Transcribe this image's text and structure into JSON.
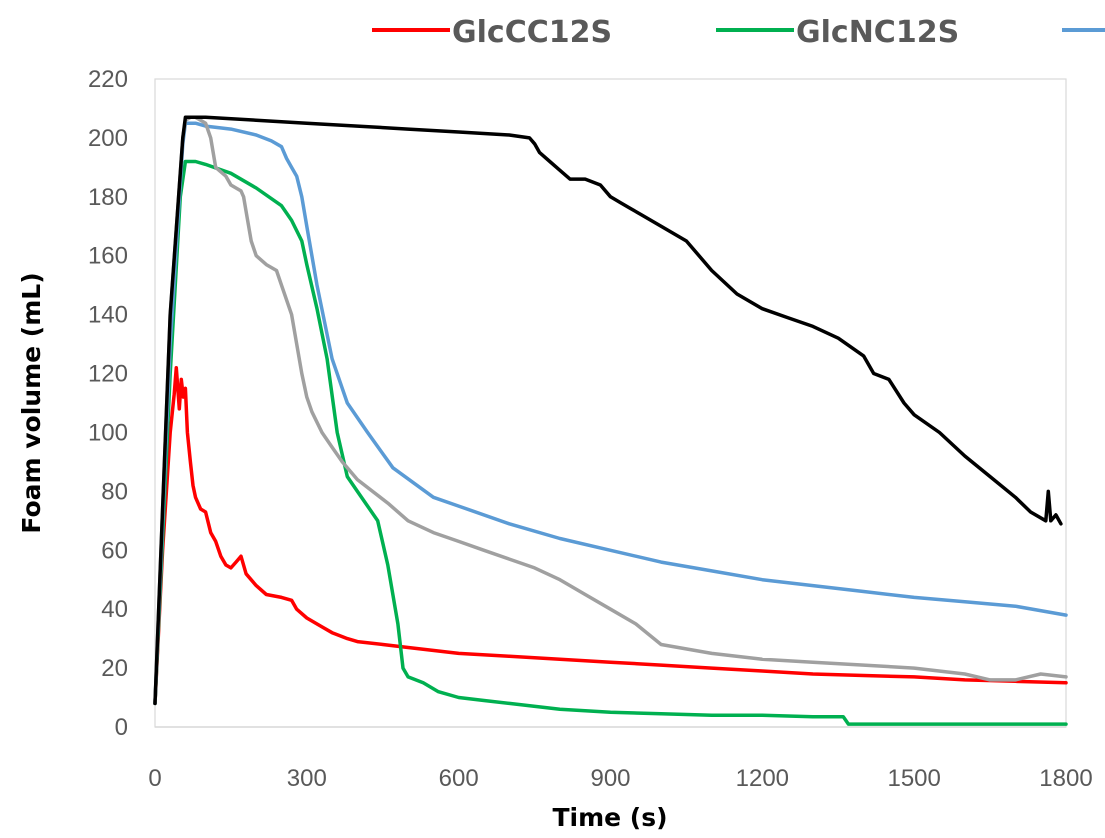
{
  "chart_data": {
    "type": "line",
    "xlabel": "Time (s)",
    "ylabel": "Foam volume (mL)",
    "xlim": [
      0,
      1800
    ],
    "ylim": [
      0,
      220
    ],
    "xticks": [
      0,
      300,
      600,
      900,
      1200,
      1500,
      1800
    ],
    "yticks": [
      0,
      20,
      40,
      60,
      80,
      100,
      120,
      140,
      160,
      180,
      200,
      220
    ],
    "grid": false,
    "legend_position": "top",
    "series": [
      {
        "name": "GlcCC12S",
        "color": "#ff0000",
        "x": [
          0,
          15,
          30,
          38,
          42,
          48,
          52,
          56,
          60,
          64,
          70,
          75,
          80,
          90,
          100,
          110,
          120,
          130,
          140,
          150,
          160,
          170,
          180,
          200,
          220,
          250,
          270,
          280,
          300,
          330,
          350,
          380,
          400,
          450,
          500,
          600,
          700,
          800,
          900,
          1000,
          1100,
          1200,
          1300,
          1400,
          1500,
          1600,
          1700,
          1800
        ],
        "y": [
          8,
          60,
          100,
          113,
          122,
          108,
          118,
          112,
          115,
          100,
          90,
          82,
          78,
          74,
          73,
          66,
          63,
          58,
          55,
          54,
          56,
          58,
          52,
          48,
          45,
          44,
          43,
          40,
          37,
          34,
          32,
          30,
          29,
          28,
          27,
          25,
          24,
          23,
          22,
          21,
          20,
          19,
          18,
          17.5,
          17,
          16,
          15.5,
          15
        ]
      },
      {
        "name": "GlcNC12S",
        "color": "#00b050",
        "x": [
          0,
          30,
          50,
          60,
          80,
          100,
          150,
          200,
          250,
          270,
          290,
          300,
          320,
          340,
          360,
          380,
          400,
          420,
          440,
          460,
          480,
          490,
          500,
          530,
          560,
          600,
          650,
          700,
          800,
          900,
          1000,
          1100,
          1200,
          1300,
          1360,
          1370,
          1400,
          1500,
          1600,
          1700,
          1800
        ],
        "y": [
          8,
          120,
          180,
          192,
          192,
          191,
          188,
          183,
          177,
          172,
          165,
          157,
          142,
          125,
          100,
          85,
          80,
          75,
          70,
          55,
          35,
          20,
          17,
          15,
          12,
          10,
          9,
          8,
          6,
          5,
          4.5,
          4,
          4,
          3.5,
          3.5,
          1,
          1,
          1,
          1,
          1,
          1
        ]
      },
      {
        "name": "",
        "color": "#5b9bd5",
        "x": [
          0,
          30,
          55,
          60,
          80,
          100,
          150,
          200,
          230,
          250,
          260,
          270,
          280,
          290,
          300,
          320,
          350,
          380,
          420,
          470,
          550,
          600,
          700,
          800,
          900,
          1000,
          1100,
          1200,
          1300,
          1400,
          1500,
          1600,
          1700,
          1800
        ],
        "y": [
          8,
          130,
          198,
          205,
          205,
          204,
          203,
          201,
          199,
          197,
          193,
          190,
          187,
          180,
          170,
          150,
          125,
          110,
          100,
          88,
          78,
          75,
          69,
          64,
          60,
          56,
          53,
          50,
          48,
          46,
          44,
          42.5,
          41,
          38
        ]
      },
      {
        "name": "",
        "color": "#a0a0a0",
        "x": [
          0,
          30,
          55,
          60,
          70,
          80,
          90,
          100,
          110,
          120,
          140,
          150,
          160,
          170,
          175,
          180,
          190,
          200,
          220,
          240,
          250,
          270,
          280,
          290,
          300,
          310,
          330,
          350,
          370,
          400,
          430,
          460,
          500,
          550,
          600,
          650,
          700,
          750,
          800,
          850,
          900,
          950,
          1000,
          1100,
          1200,
          1300,
          1400,
          1500,
          1600,
          1650,
          1700,
          1750,
          1800
        ],
        "y": [
          8,
          140,
          200,
          206,
          207,
          207,
          206,
          205,
          200,
          190,
          187,
          184,
          183,
          182,
          180,
          175,
          165,
          160,
          157,
          155,
          150,
          140,
          130,
          120,
          112,
          107,
          100,
          95,
          90,
          84,
          80,
          76,
          70,
          66,
          63,
          60,
          57,
          54,
          50,
          45,
          40,
          35,
          28,
          25,
          23,
          22,
          21,
          20,
          18,
          16,
          16,
          18,
          17
        ]
      },
      {
        "name": "",
        "color": "#000000",
        "x": [
          0,
          30,
          55,
          60,
          100,
          200,
          300,
          400,
          500,
          600,
          700,
          740,
          750,
          760,
          780,
          800,
          820,
          850,
          880,
          900,
          920,
          940,
          960,
          1000,
          1050,
          1100,
          1150,
          1200,
          1250,
          1300,
          1350,
          1400,
          1420,
          1450,
          1480,
          1500,
          1550,
          1600,
          1650,
          1700,
          1730,
          1760,
          1765,
          1770,
          1780,
          1790
        ],
        "y": [
          8,
          140,
          200,
          207,
          207,
          206,
          205,
          204,
          203,
          202,
          201,
          200,
          198,
          195,
          192,
          189,
          186,
          186,
          184,
          180,
          178,
          176,
          174,
          170,
          165,
          155,
          147,
          142,
          139,
          136,
          132,
          126,
          120,
          118,
          110,
          106,
          100,
          92,
          85,
          78,
          73,
          70,
          80,
          70,
          72,
          69
        ]
      }
    ]
  }
}
